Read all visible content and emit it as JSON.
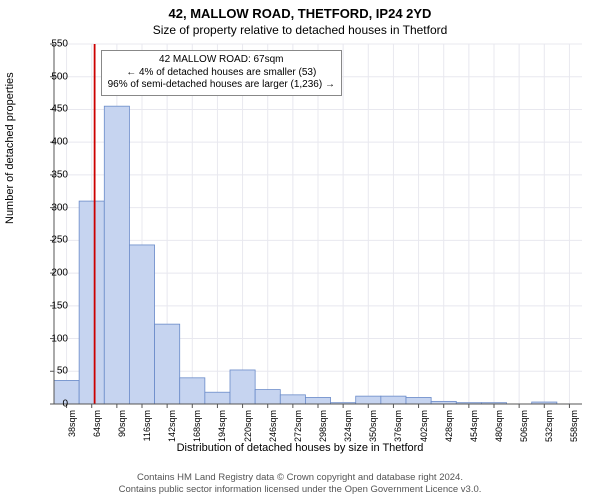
{
  "title": "42, MALLOW ROAD, THETFORD, IP24 2YD",
  "subtitle": "Size of property relative to detached houses in Thetford",
  "ylabel": "Number of detached properties",
  "xlabel": "Distribution of detached houses by size in Thetford",
  "footer_line1": "Contains HM Land Registry data © Crown copyright and database right 2024.",
  "footer_line2": "Contains public sector information licensed under the Open Government Licence v3.0.",
  "annotation": {
    "line1": "42 MALLOW ROAD: 67sqm",
    "line2": "← 4% of detached houses are smaller (53)",
    "line3": "96% of semi-detached houses are larger (1,236) →"
  },
  "chart": {
    "type": "bar-histogram",
    "xlim": [
      25,
      571
    ],
    "ylim": [
      0,
      550
    ],
    "ytick_step": 50,
    "xtick_start": 38,
    "xtick_step": 26,
    "xtick_unit": "sqm",
    "xtick_count": 21,
    "bar_color": "#c6d4f0",
    "bar_border": "#6a8bc9",
    "background": "#ffffff",
    "grid_color": "#e8e8ef",
    "axis_color": "#555555",
    "marker_line_color": "#cc0000",
    "marker_x": 67,
    "values": [
      36,
      310,
      455,
      243,
      122,
      40,
      18,
      52,
      22,
      14,
      10,
      2,
      12,
      12,
      10,
      4,
      2,
      2,
      0,
      3,
      0
    ]
  },
  "style": {
    "title_fontsize": 13,
    "subtitle_fontsize": 12,
    "label_fontsize": 11,
    "tick_fontsize": 10,
    "xtick_fontsize": 9,
    "annotation_fontsize": 10,
    "footer_fontsize": 9.5
  }
}
